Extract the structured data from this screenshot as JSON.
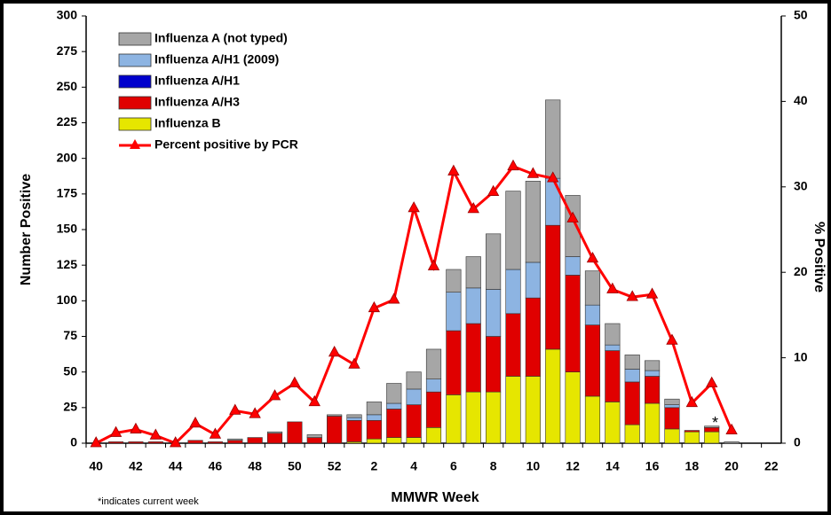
{
  "chart_data": {
    "type": "bar",
    "x_label": "MMWR Week",
    "y_label": "Number Positive",
    "y2_label": "% Positive",
    "annotations": [
      "*",
      "*indicates current week"
    ],
    "categories": [
      "40",
      null,
      "42",
      null,
      "44",
      null,
      "46",
      null,
      "48",
      null,
      "50",
      null,
      "52",
      null,
      "2",
      null,
      "4",
      null,
      "6",
      null,
      "8",
      null,
      "10",
      null,
      "12",
      null,
      "14",
      null,
      "16",
      null,
      "18",
      null,
      "20",
      null,
      "22"
    ],
    "series": [
      {
        "name": "Influenza A (not typed)",
        "type": "bar",
        "color": "#a6a6a6",
        "values": [
          0,
          0,
          0,
          0,
          0,
          0,
          0,
          1,
          0,
          1,
          0,
          2,
          1,
          2,
          9,
          14,
          12,
          21,
          16,
          22,
          39,
          55,
          57,
          55,
          43,
          24,
          15,
          10,
          7,
          4,
          0,
          1,
          1,
          0,
          0
        ]
      },
      {
        "name": "Influenza A/H1 (2009)",
        "type": "bar",
        "color": "#8db4e2",
        "values": [
          0,
          0,
          0,
          0,
          0,
          0,
          0,
          0,
          0,
          0,
          0,
          0,
          0,
          2,
          4,
          4,
          11,
          9,
          27,
          25,
          33,
          31,
          25,
          33,
          13,
          14,
          4,
          9,
          4,
          2,
          0,
          0,
          0,
          0,
          0
        ]
      },
      {
        "name": "Influenza A/H1",
        "type": "bar",
        "color": "#0000cc",
        "values": [
          0,
          0,
          0,
          0,
          0,
          0,
          0,
          0,
          0,
          0,
          0,
          0,
          0,
          0,
          0,
          0,
          0,
          0,
          0,
          0,
          0,
          0,
          0,
          0,
          0,
          0,
          0,
          0,
          0,
          0,
          0,
          0,
          0,
          0,
          0
        ]
      },
      {
        "name": "Influenza A/H3",
        "type": "bar",
        "color": "#e00000",
        "values": [
          0,
          1,
          1,
          1,
          0,
          2,
          1,
          2,
          4,
          7,
          15,
          4,
          19,
          15,
          13,
          20,
          23,
          25,
          45,
          48,
          39,
          44,
          55,
          87,
          68,
          50,
          36,
          30,
          19,
          15,
          1,
          3,
          0,
          0,
          0
        ]
      },
      {
        "name": "Influenza B",
        "type": "bar",
        "color": "#e6e600",
        "values": [
          0,
          0,
          0,
          0,
          0,
          0,
          0,
          0,
          0,
          0,
          0,
          0,
          0,
          1,
          3,
          4,
          4,
          11,
          34,
          36,
          36,
          47,
          47,
          66,
          50,
          33,
          29,
          13,
          28,
          10,
          8,
          8,
          0,
          0,
          0
        ]
      },
      {
        "name": "Percent positive by PCR",
        "type": "line",
        "axis": "y2",
        "color": "#ff0000",
        "values": [
          0,
          1.2,
          1.6,
          0.9,
          0,
          2.3,
          1.0,
          3.8,
          3.4,
          5.5,
          7.0,
          4.8,
          10.6,
          9.2,
          15.8,
          16.8,
          27.5,
          20.7,
          31.8,
          27.4,
          29.4,
          32.4,
          31.5,
          31.0,
          26.3,
          21.6,
          18.0,
          17.1,
          17.4,
          12.0,
          4.7,
          7.0,
          1.5,
          null,
          null
        ]
      }
    ],
    "ylim": [
      0,
      300
    ],
    "yticks": [
      0,
      25,
      50,
      75,
      100,
      125,
      150,
      175,
      200,
      225,
      250,
      275,
      300
    ],
    "y2lim": [
      0,
      50
    ],
    "y2ticks": [
      0,
      10,
      20,
      30,
      40,
      50
    ],
    "legend": "top-left"
  }
}
